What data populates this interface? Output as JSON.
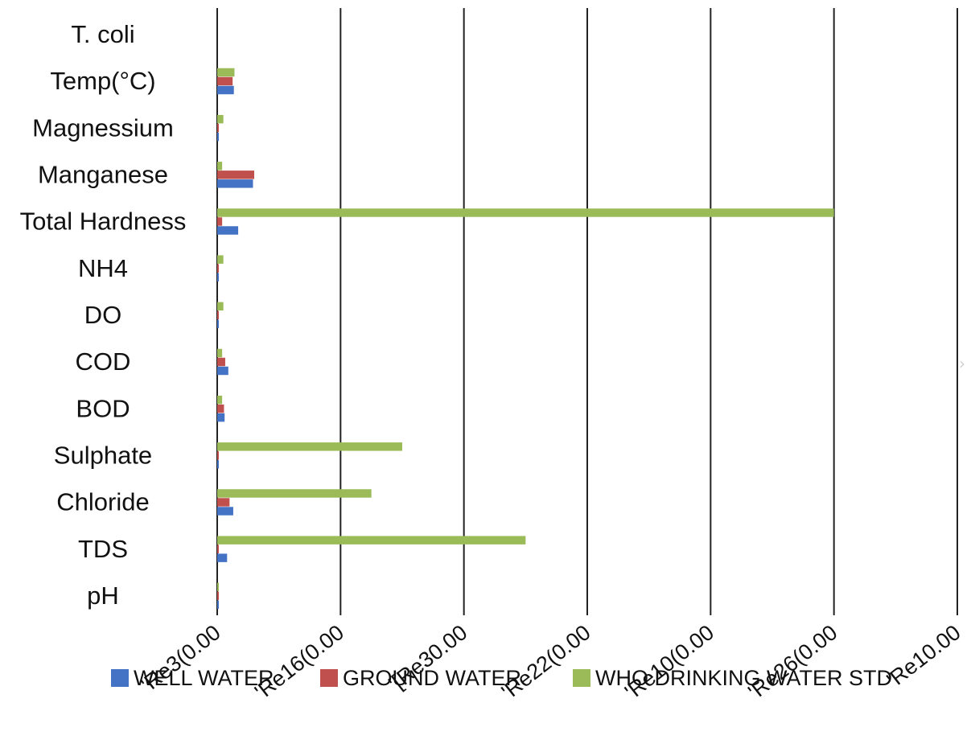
{
  "chart_data": {
    "type": "bar",
    "orientation": "horizontal",
    "categories": [
      "pH",
      "TDS",
      "Chloride",
      "Sulphate",
      "BOD",
      "COD",
      "DO",
      "NH4",
      "Total Hardness",
      "Manganese",
      "Magnessium",
      "Temp(°C)",
      "T. coli"
    ],
    "series": [
      {
        "name": "WELL WATER",
        "color": "#4472C4",
        "values": [
          7.5,
          80,
          130,
          4,
          60,
          90,
          5,
          1,
          170,
          290,
          8,
          135,
          0
        ]
      },
      {
        "name": "GROUND WATER",
        "color": "#C0504D",
        "values": [
          8,
          5,
          100,
          2,
          55,
          65,
          3,
          0.5,
          40,
          300,
          2,
          125,
          0
        ]
      },
      {
        "name": "WHO DRINKING WATER STD",
        "color": "#9BBB59",
        "values": [
          8,
          2500,
          1250,
          1500,
          40,
          40,
          50,
          50,
          5000,
          40,
          50,
          140,
          0
        ]
      }
    ],
    "xlim": [
      0,
      6000
    ],
    "x_tick_labels": [
      "'Re3(0.00",
      "'Re16(0.00",
      "'[Re30.00",
      "'Re22(0.00",
      "'Re10(0.00",
      "'Re26(0.00",
      "'Re10.00"
    ],
    "grid": true,
    "legend_position": "bottom",
    "title": "",
    "xlabel": "",
    "ylabel": ""
  },
  "nav": {
    "next_icon": "chevron-right-icon"
  }
}
